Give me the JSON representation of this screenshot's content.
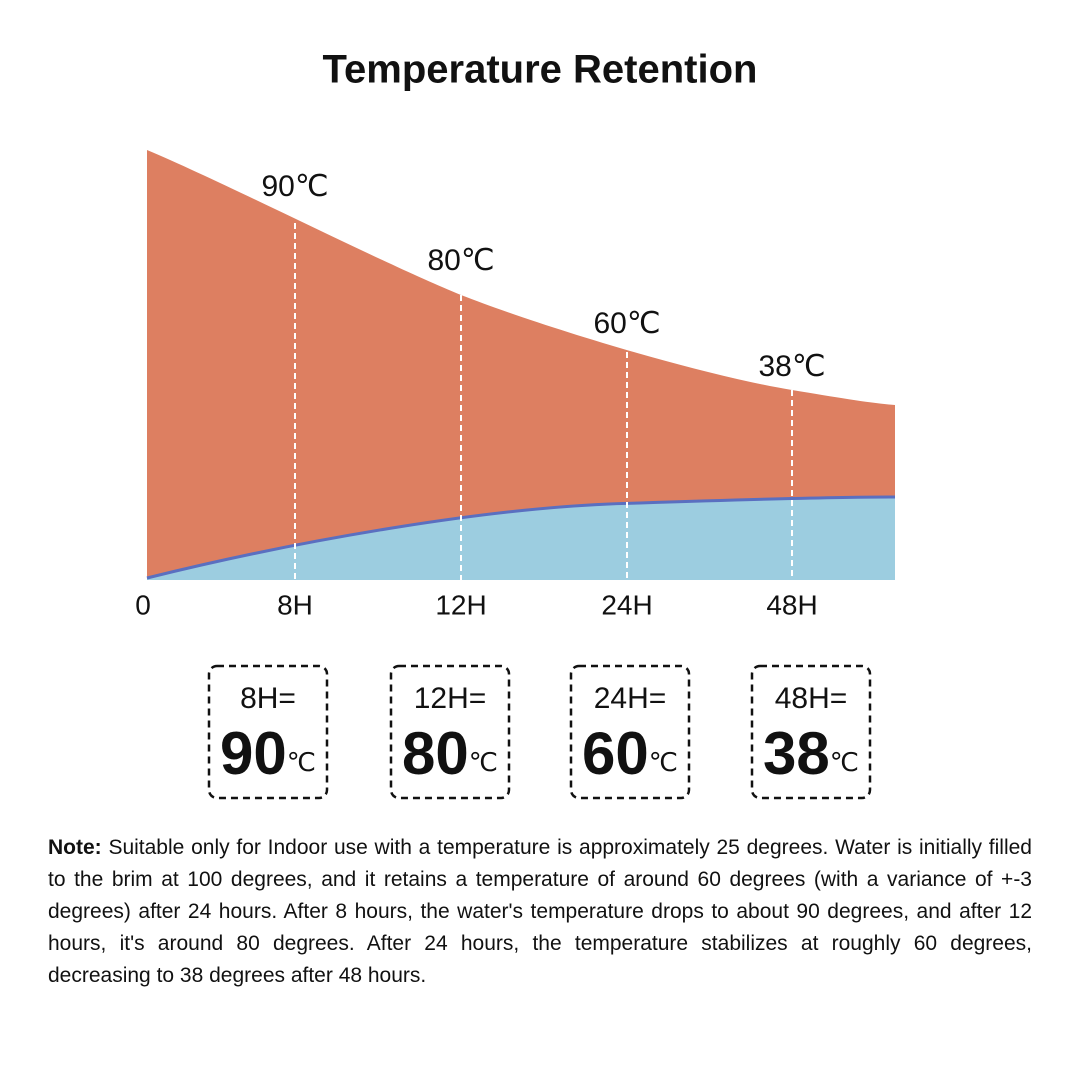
{
  "title": "Temperature Retention",
  "curve_labels": [
    "90℃",
    "80℃",
    "60℃",
    "38℃"
  ],
  "x_labels": [
    "0",
    "8H",
    "12H",
    "24H",
    "48H"
  ],
  "boxes": [
    {
      "label": "8H=",
      "value": "90",
      "unit": "℃"
    },
    {
      "label": "12H=",
      "value": "80",
      "unit": "℃"
    },
    {
      "label": "24H=",
      "value": "60",
      "unit": "℃"
    },
    {
      "label": "48H=",
      "value": "38",
      "unit": "℃"
    }
  ],
  "note": {
    "label": "Note:",
    "text": "Suitable only for Indoor use with a temperature is approximately 25 degrees. Water is initially filled to the brim at 100 degrees, and it retains a temperature of around 60 degrees (with a variance of +-3 degrees) after 24 hours. After 8 hours, the water's temperature drops to about 90 degrees, and after 12 hours, it's around 80 degrees. After 24 hours, the temperature stabilizes at roughly 60 degrees, decreasing to 38 degrees after 48 hours."
  }
}
